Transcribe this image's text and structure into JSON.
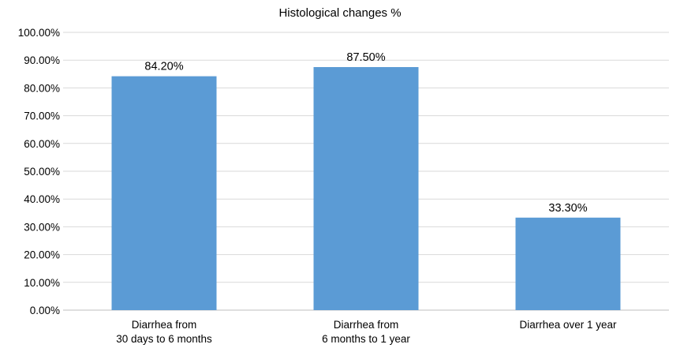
{
  "chart_data": {
    "type": "bar",
    "title": "Histological changes %",
    "categories": [
      [
        "Diarrhea from",
        "30 days to 6 months"
      ],
      [
        "Diarrhea from",
        "6 months to 1 year"
      ],
      [
        "Diarrhea over 1 year"
      ]
    ],
    "values": [
      84.2,
      87.5,
      33.3
    ],
    "data_labels": [
      "84.20%",
      "87.50%",
      "33.30%"
    ],
    "yticks": [
      "0.00%",
      "10.00%",
      "20.00%",
      "30.00%",
      "40.00%",
      "50.00%",
      "60.00%",
      "70.00%",
      "80.00%",
      "90.00%",
      "100.00%"
    ],
    "ylim": [
      0,
      100
    ],
    "grid": true,
    "bar_color": "#5b9bd5",
    "grid_color": "#d9d9d9"
  }
}
